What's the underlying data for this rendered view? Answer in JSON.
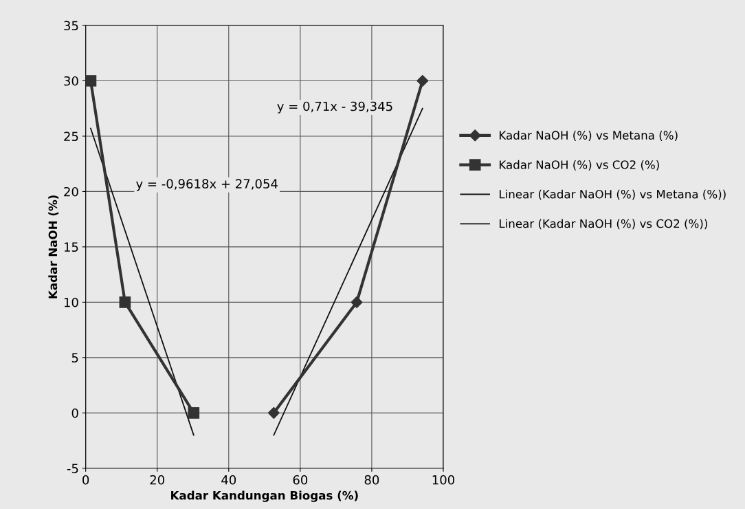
{
  "chart_data": {
    "type": "line",
    "xlabel": "Kadar Kandungan Biogas (%)",
    "ylabel": "Kadar NaOH (%)",
    "xlim": [
      0,
      100
    ],
    "xticks": [
      0,
      20,
      40,
      60,
      80,
      100
    ],
    "ylim": [
      -5,
      35
    ],
    "yticks": [
      -5,
      0,
      5,
      10,
      15,
      20,
      25,
      30,
      35
    ],
    "grid": true,
    "legend": "right",
    "series": [
      {
        "name": "Kadar NaOH (%) vs Metana (%)",
        "color": "#333333",
        "marker": "diamond",
        "x": [
          52.6,
          75.8,
          94.2
        ],
        "values": [
          0,
          10,
          30
        ]
      },
      {
        "name": "Kadar NaOH (%) vs CO2 (%)",
        "color": "#333333",
        "marker": "square",
        "x": [
          1.4,
          11,
          30.2
        ],
        "values": [
          30,
          10,
          0
        ]
      },
      {
        "name": "Linear (Kadar NaOH (%) vs Metana (%))",
        "color": "#111111",
        "marker": "none",
        "x": [
          52.6,
          94.2
        ],
        "values": [
          -2.0,
          27.5
        ]
      },
      {
        "name": "Linear (Kadar NaOH (%) vs CO2 (%))",
        "color": "#111111",
        "marker": "none",
        "x": [
          1.4,
          30.2
        ],
        "values": [
          25.7,
          -2.0
        ]
      }
    ],
    "annotations": [
      "y = 0,71x - 39,345",
      "y = -0,9618x + 27,054"
    ]
  }
}
